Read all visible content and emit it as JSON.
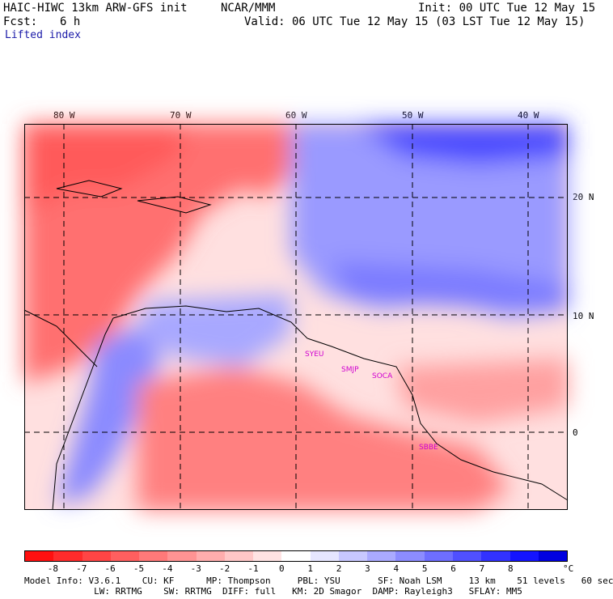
{
  "header": {
    "model_line": "HAIC-HIWC 13km ARW-GFS init",
    "org": "NCAR/MMM",
    "init": "Init: 00 UTC Tue 12 May 15",
    "fcst_label": "Fcst:",
    "fcst_value": "6 h",
    "valid": "Valid: 06 UTC Tue 12 May 15 (03 LST Tue 12 May 15)",
    "field": "Lifted index"
  },
  "map": {
    "lon_labels": [
      "80 W",
      "70 W",
      "60 W",
      "50 W",
      "40 W"
    ],
    "lat_labels": [
      "20 N",
      "10 N",
      "0"
    ],
    "stations": [
      "SYEU",
      "SMJP",
      "SOCA",
      "SBBE"
    ]
  },
  "colorbar": {
    "labels": [
      "-8",
      "-7",
      "-6",
      "-5",
      "-4",
      "-3",
      "-2",
      "-1",
      "0",
      "1",
      "2",
      "3",
      "4",
      "5",
      "6",
      "7",
      "8"
    ],
    "unit": "°C",
    "colors": [
      "#ff1010",
      "#ff2b2b",
      "#ff4545",
      "#ff5f5f",
      "#ff7979",
      "#ff9393",
      "#ffadad",
      "#ffc7c7",
      "#ffe3e3",
      "#ffffff",
      "#e6e6ff",
      "#c8c8ff",
      "#aaaaff",
      "#8c8cff",
      "#6e6eff",
      "#5050ff",
      "#3232ff",
      "#1414ff",
      "#0000e0"
    ]
  },
  "footer": {
    "line1": "Model Info: V3.6.1    CU: KF      MP: Thompson     PBL: YSU       SF: Noah LSM     13 km    51 levels   60 sec",
    "line2": "             LW: RRTMG    SW: RRTMG  DIFF: full   KM: 2D Smagor  DAMP: Rayleigh3   SFLAY: MM5"
  }
}
